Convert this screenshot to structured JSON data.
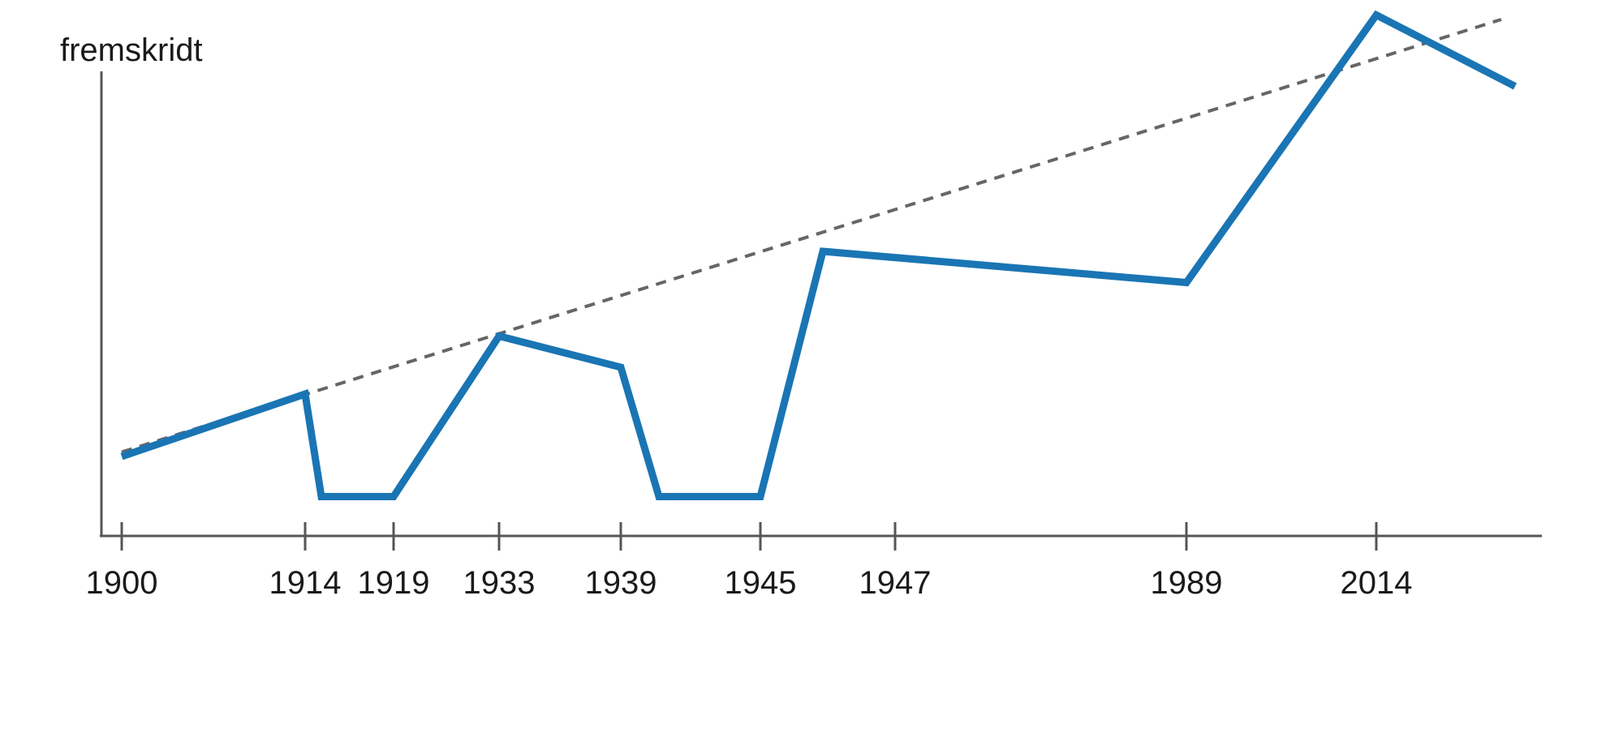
{
  "chart_data": {
    "type": "line",
    "ylabel": "fremskridt",
    "xlabel": "",
    "tick_labels": [
      "1900",
      "1914",
      "1919",
      "1933",
      "1939",
      "1945",
      "1947",
      "1989",
      "2014"
    ],
    "series": [
      {
        "style": "solid",
        "color": "#1a75b4",
        "points": [
          {
            "x": 1900,
            "y": 18
          },
          {
            "x": 1914,
            "y": 32
          },
          {
            "x": 1915,
            "y": 9
          },
          {
            "x": 1919,
            "y": 9
          },
          {
            "x": 1933,
            "y": 45
          },
          {
            "x": 1939,
            "y": 38
          },
          {
            "x": 1940,
            "y": 9
          },
          {
            "x": 1945,
            "y": 9
          },
          {
            "x": 1946,
            "y": 64
          },
          {
            "x": 1989,
            "y": 57
          },
          {
            "x": 2014,
            "y": 117
          },
          {
            "x": 2020,
            "y": 101
          }
        ]
      },
      {
        "style": "dashed",
        "color": "#666666",
        "points": [
          {
            "x": 1900,
            "y": 19
          },
          {
            "x": 2019,
            "y": 116
          }
        ]
      }
    ],
    "grid": false
  }
}
